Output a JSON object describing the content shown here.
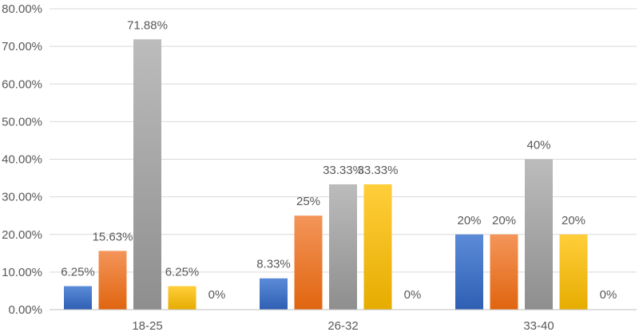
{
  "chart_data": {
    "type": "bar",
    "title": "",
    "xlabel": "",
    "ylabel": "",
    "ylim": [
      0,
      80
    ],
    "y_ticks": [
      0,
      10,
      20,
      30,
      40,
      50,
      60,
      70,
      80
    ],
    "y_tick_labels": [
      "0.00%",
      "10.00%",
      "20.00%",
      "30.00%",
      "40.00%",
      "50.00%",
      "60.00%",
      "70.00%",
      "80.00%"
    ],
    "grid": true,
    "legend": "none",
    "categories": [
      "18-25",
      "26-32",
      "33-40"
    ],
    "series": [
      {
        "color": "#4472c4",
        "values": [
          6.25,
          8.33,
          20
        ],
        "labels": [
          "6.25%",
          "8.33%",
          "20%"
        ]
      },
      {
        "color": "#ed7d31",
        "values": [
          15.63,
          25,
          20
        ],
        "labels": [
          "15.63%",
          "25%",
          "20%"
        ]
      },
      {
        "color": "#a5a5a5",
        "values": [
          71.88,
          33.33,
          40
        ],
        "labels": [
          "71.88%",
          "33.33%",
          "40%"
        ]
      },
      {
        "color": "#ffc000",
        "values": [
          6.25,
          33.33,
          20
        ],
        "labels": [
          "6.25%",
          "33.33%",
          "20%"
        ]
      },
      {
        "color": "#5b9bd5",
        "values": [
          0,
          0,
          0
        ],
        "labels": [
          "0%",
          "0%",
          "0%"
        ]
      }
    ]
  }
}
